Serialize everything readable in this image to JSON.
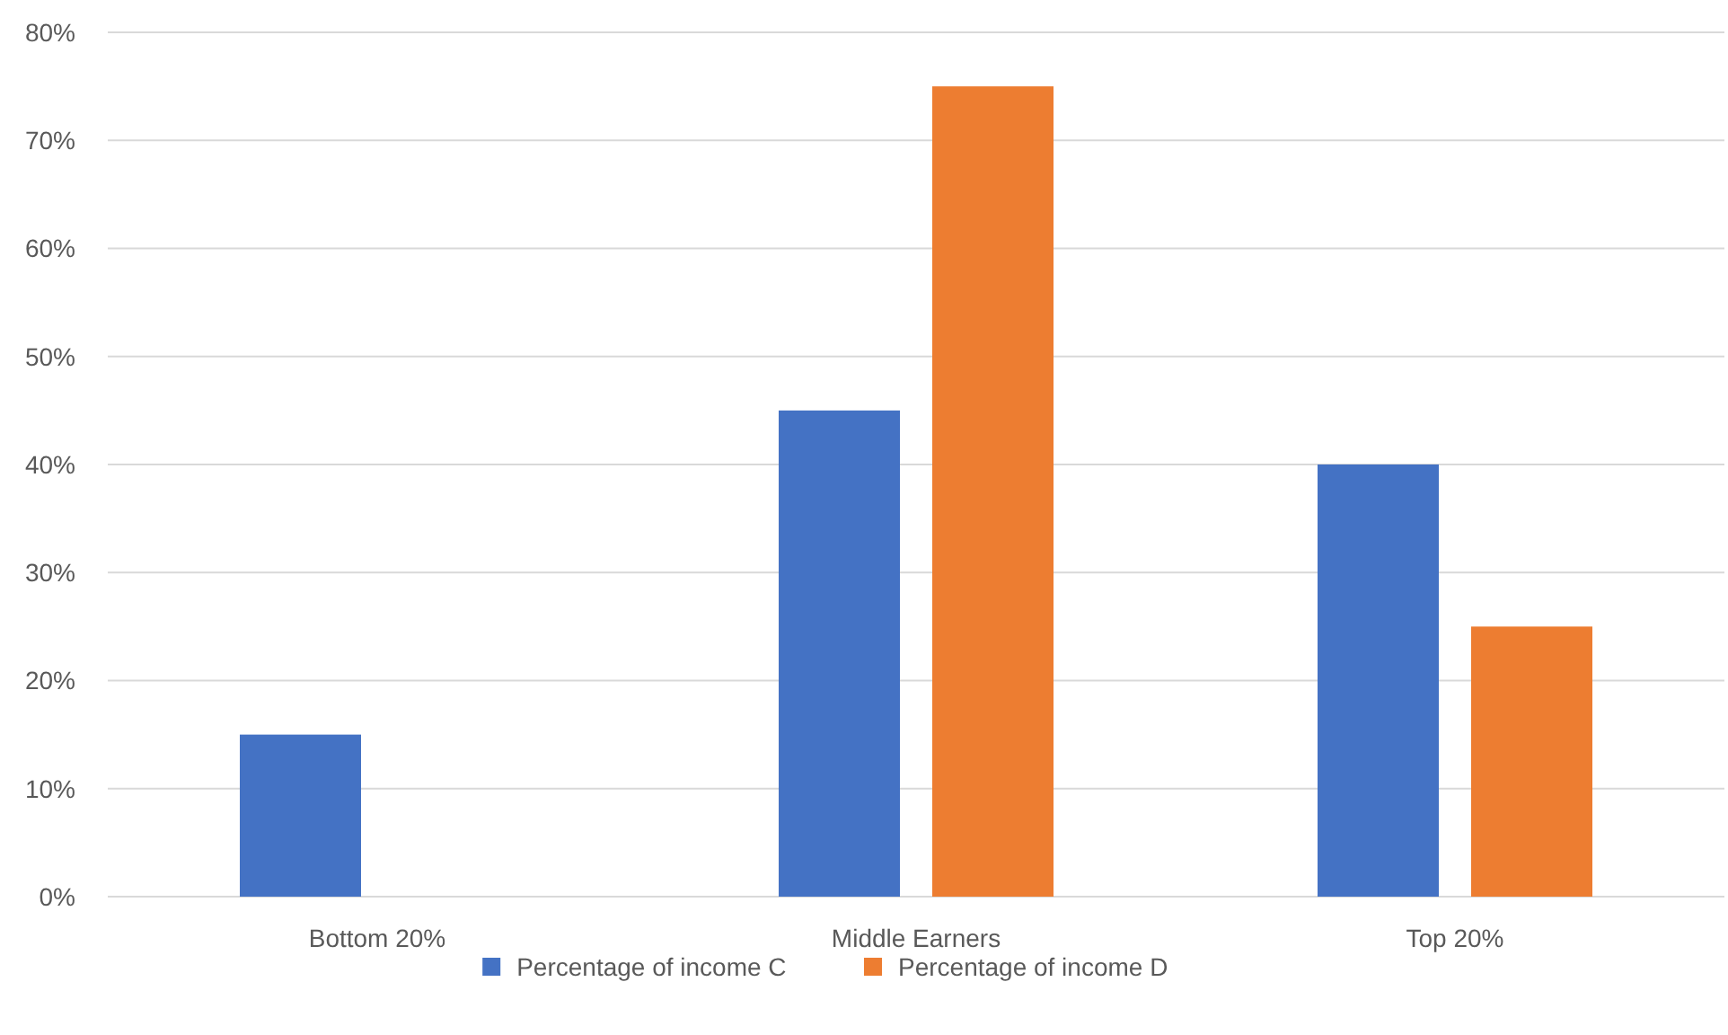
{
  "chart_data": {
    "type": "bar",
    "categories": [
      "Bottom 20%",
      "Middle Earners",
      "Top 20%"
    ],
    "series": [
      {
        "name": "Percentage of income C",
        "color": "#4472c4",
        "values": [
          15,
          45,
          40
        ]
      },
      {
        "name": "Percentage of income D",
        "color": "#ed7d31",
        "values": [
          null,
          75,
          25
        ]
      }
    ],
    "ylim": [
      0,
      80
    ],
    "yticks": [
      {
        "value": 0,
        "label": "0%"
      },
      {
        "value": 10,
        "label": "10%"
      },
      {
        "value": 20,
        "label": "20%"
      },
      {
        "value": 30,
        "label": "30%"
      },
      {
        "value": 40,
        "label": "40%"
      },
      {
        "value": 50,
        "label": "50%"
      },
      {
        "value": 60,
        "label": "60%"
      },
      {
        "value": 70,
        "label": "70%"
      },
      {
        "value": 80,
        "label": "80%"
      }
    ],
    "grid": "y",
    "legend": "bottom"
  }
}
